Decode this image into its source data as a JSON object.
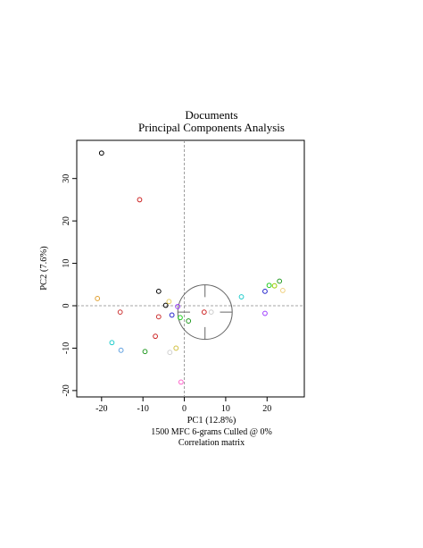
{
  "chart_data": {
    "type": "scatter",
    "title": "Documents",
    "subtitle": "Principal Components Analysis",
    "xlabel": "PC1 (12.8%)",
    "ylabel": "PC2 (7.6%)",
    "caption_lines": [
      "1500 MFC 6-grams Culled @ 0%",
      "Correlation matrix"
    ],
    "xlim": [
      -26,
      29
    ],
    "ylim": [
      -21.5,
      39
    ],
    "x_ticks": [
      "-20",
      "-10",
      "0",
      "10",
      "20"
    ],
    "y_ticks": [
      "-20",
      "-10",
      "0",
      "10",
      "20",
      "30"
    ],
    "grid": false,
    "reference_lines": {
      "x": 0,
      "y": 0
    },
    "legend": "none",
    "circle": {
      "cx": 5,
      "cy": -1.5,
      "r": 6.5
    },
    "points": [
      {
        "x": -20.0,
        "y": 36.0,
        "color": "#000000"
      },
      {
        "x": -10.8,
        "y": 25.0,
        "color": "#cc2222"
      },
      {
        "x": -21.0,
        "y": 1.7,
        "color": "#e0a030"
      },
      {
        "x": -15.5,
        "y": -1.5,
        "color": "#cc3333"
      },
      {
        "x": -6.2,
        "y": 3.4,
        "color": "#000000"
      },
      {
        "x": -4.5,
        "y": 0.1,
        "color": "#000000"
      },
      {
        "x": -3.7,
        "y": 1.0,
        "color": "#e8d060"
      },
      {
        "x": -1.6,
        "y": -0.2,
        "color": "#a040ff"
      },
      {
        "x": -3.0,
        "y": -2.2,
        "color": "#2222cc"
      },
      {
        "x": -6.2,
        "y": -2.6,
        "color": "#cc3333"
      },
      {
        "x": -1.0,
        "y": -2.8,
        "color": "#22cc22"
      },
      {
        "x": 1.0,
        "y": -3.6,
        "color": "#229922"
      },
      {
        "x": -7.0,
        "y": -7.2,
        "color": "#cc2222"
      },
      {
        "x": -17.5,
        "y": -8.7,
        "color": "#22cccc"
      },
      {
        "x": -15.3,
        "y": -10.5,
        "color": "#60a0e0"
      },
      {
        "x": -9.5,
        "y": -10.8,
        "color": "#229922"
      },
      {
        "x": -3.5,
        "y": -11.0,
        "color": "#d0d0d0"
      },
      {
        "x": -2.0,
        "y": -10.0,
        "color": "#d0c040"
      },
      {
        "x": -0.8,
        "y": -18.0,
        "color": "#ff66cc"
      },
      {
        "x": 4.8,
        "y": -1.5,
        "color": "#cc2222"
      },
      {
        "x": 6.5,
        "y": -1.5,
        "color": "#cccccc"
      },
      {
        "x": 13.8,
        "y": 2.1,
        "color": "#22cccc"
      },
      {
        "x": 19.5,
        "y": -1.8,
        "color": "#a040ff"
      },
      {
        "x": 19.5,
        "y": 3.4,
        "color": "#2222cc"
      },
      {
        "x": 20.5,
        "y": 4.8,
        "color": "#22cc22"
      },
      {
        "x": 21.8,
        "y": 4.7,
        "color": "#99cc00"
      },
      {
        "x": 23.0,
        "y": 5.8,
        "color": "#229922"
      },
      {
        "x": 23.8,
        "y": 3.6,
        "color": "#f0d080"
      }
    ]
  }
}
